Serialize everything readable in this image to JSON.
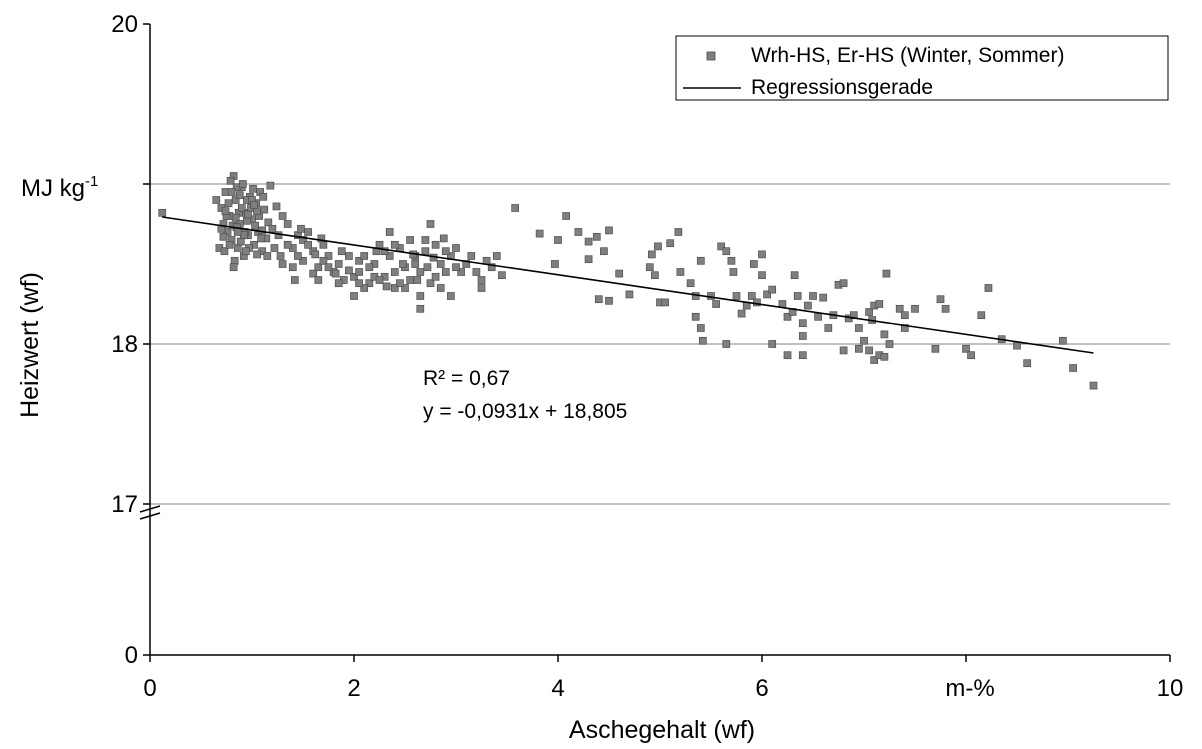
{
  "chart_data": {
    "type": "scatter",
    "xlabel": "Aschegehalt (wf)",
    "ylabel": "Heizwert (wf)",
    "x_unit_label": "m-%",
    "y_unit_label": "MJ kg",
    "y_unit_superscript": "-1",
    "xlim": [
      0,
      10
    ],
    "x_ticks": [
      "0",
      "2",
      "4",
      "6",
      "",
      "10"
    ],
    "y_ticks": [
      {
        "value": 0,
        "label": "0"
      },
      {
        "value": 17,
        "label": "17"
      },
      {
        "value": 18,
        "label": "18"
      },
      {
        "value": 19,
        "label": ""
      },
      {
        "value": 20,
        "label": "20"
      }
    ],
    "y_axis_break": true,
    "y_break_between": [
      0,
      17
    ],
    "gridlines": [
      17,
      18,
      19
    ],
    "legend": {
      "position": "top-right",
      "entries": [
        "Wrh-HS, Er-HS (Winter, Sommer)",
        "Regressionsgerade"
      ]
    },
    "annotation": {
      "r2": "R² = 0,67",
      "equation": "y = -0,0931x + 18,805"
    },
    "colors": {
      "marker_fill": "#7f7f7f",
      "marker_stroke": "#4d4d4d",
      "line": "#000000",
      "grid": "#808080"
    },
    "regression": {
      "slope": -0.0931,
      "intercept": 18.805,
      "x_range": [
        0.12,
        9.25
      ]
    },
    "series": [
      {
        "name": "Wrh-HS, Er-HS (Winter, Sommer)",
        "points": [
          [
            0.12,
            18.82
          ],
          [
            3.58,
            18.85
          ],
          [
            4.08,
            18.8
          ],
          [
            3.82,
            18.69
          ],
          [
            4.0,
            18.65
          ],
          [
            4.2,
            18.7
          ],
          [
            4.3,
            18.64
          ],
          [
            4.38,
            18.67
          ],
          [
            4.5,
            18.71
          ],
          [
            3.97,
            18.5
          ],
          [
            4.3,
            18.53
          ],
          [
            4.45,
            18.58
          ],
          [
            4.6,
            18.44
          ],
          [
            4.7,
            18.31
          ],
          [
            4.92,
            18.56
          ],
          [
            4.98,
            18.61
          ],
          [
            5.1,
            18.63
          ],
          [
            5.18,
            18.7
          ],
          [
            5.2,
            18.45
          ],
          [
            4.9,
            18.48
          ],
          [
            4.95,
            18.43
          ],
          [
            5.0,
            18.26
          ],
          [
            5.05,
            18.26
          ],
          [
            4.5,
            18.27
          ],
          [
            4.4,
            18.28
          ],
          [
            5.3,
            18.38
          ],
          [
            5.35,
            18.3
          ],
          [
            5.4,
            18.52
          ],
          [
            5.35,
            18.17
          ],
          [
            5.4,
            18.1
          ],
          [
            5.42,
            18.02
          ],
          [
            5.5,
            18.3
          ],
          [
            5.55,
            18.25
          ],
          [
            5.6,
            18.61
          ],
          [
            5.65,
            18.58
          ],
          [
            5.7,
            18.52
          ],
          [
            5.72,
            18.45
          ],
          [
            5.75,
            18.3
          ],
          [
            5.8,
            18.19
          ],
          [
            5.85,
            18.24
          ],
          [
            5.9,
            18.3
          ],
          [
            5.92,
            18.5
          ],
          [
            5.95,
            18.26
          ],
          [
            6.0,
            18.43
          ],
          [
            6.05,
            18.31
          ],
          [
            5.65,
            18.0
          ],
          [
            6.0,
            18.56
          ],
          [
            6.1,
            18.34
          ],
          [
            6.2,
            18.25
          ],
          [
            6.25,
            18.17
          ],
          [
            6.3,
            18.2
          ],
          [
            6.32,
            18.43
          ],
          [
            6.35,
            18.3
          ],
          [
            6.4,
            18.13
          ],
          [
            6.4,
            18.05
          ],
          [
            6.45,
            18.24
          ],
          [
            6.5,
            18.3
          ],
          [
            6.55,
            18.17
          ],
          [
            6.6,
            18.29
          ],
          [
            6.65,
            18.1
          ],
          [
            6.7,
            18.18
          ],
          [
            6.75,
            18.37
          ],
          [
            6.8,
            18.38
          ],
          [
            6.85,
            18.16
          ],
          [
            6.9,
            18.18
          ],
          [
            6.95,
            18.1
          ],
          [
            7.0,
            18.02
          ],
          [
            7.05,
            18.2
          ],
          [
            7.08,
            18.15
          ],
          [
            7.1,
            18.24
          ],
          [
            7.15,
            18.25
          ],
          [
            7.2,
            18.06
          ],
          [
            7.22,
            18.44
          ],
          [
            7.25,
            18.0
          ],
          [
            7.05,
            17.96
          ],
          [
            7.1,
            17.9
          ],
          [
            7.15,
            17.93
          ],
          [
            7.2,
            17.92
          ],
          [
            6.95,
            17.97
          ],
          [
            6.25,
            17.93
          ],
          [
            6.4,
            17.93
          ],
          [
            6.1,
            18.0
          ],
          [
            6.8,
            17.96
          ],
          [
            7.35,
            18.22
          ],
          [
            7.4,
            18.18
          ],
          [
            7.5,
            18.22
          ],
          [
            7.4,
            18.1
          ],
          [
            7.7,
            17.97
          ],
          [
            7.75,
            18.28
          ],
          [
            7.8,
            18.22
          ],
          [
            8.0,
            17.97
          ],
          [
            8.05,
            17.93
          ],
          [
            8.15,
            18.18
          ],
          [
            8.22,
            18.35
          ],
          [
            8.35,
            18.03
          ],
          [
            8.5,
            17.99
          ],
          [
            8.6,
            17.88
          ],
          [
            8.95,
            18.02
          ],
          [
            9.05,
            17.85
          ],
          [
            9.25,
            17.74
          ],
          [
            3.1,
            18.5
          ],
          [
            3.15,
            18.55
          ],
          [
            3.2,
            18.45
          ],
          [
            3.25,
            18.4
          ],
          [
            3.3,
            18.52
          ],
          [
            3.35,
            18.48
          ],
          [
            3.4,
            18.55
          ],
          [
            3.45,
            18.43
          ],
          [
            3.25,
            18.35
          ],
          [
            3.05,
            18.45
          ],
          [
            0.65,
            18.9
          ],
          [
            0.7,
            18.85
          ],
          [
            0.72,
            18.75
          ],
          [
            0.74,
            18.95
          ],
          [
            0.76,
            18.7
          ],
          [
            0.78,
            18.8
          ],
          [
            0.8,
            18.65
          ],
          [
            0.82,
            19.05
          ],
          [
            0.84,
            18.9
          ],
          [
            0.86,
            18.6
          ],
          [
            0.88,
            18.75
          ],
          [
            0.9,
            18.98
          ],
          [
            0.92,
            18.55
          ],
          [
            0.94,
            18.82
          ],
          [
            0.96,
            18.68
          ],
          [
            0.98,
            18.92
          ],
          [
            1.0,
            18.78
          ],
          [
            1.02,
            18.62
          ],
          [
            1.04,
            18.88
          ],
          [
            1.06,
            18.7
          ],
          [
            1.08,
            18.95
          ],
          [
            1.1,
            18.58
          ],
          [
            1.12,
            18.84
          ],
          [
            1.14,
            18.66
          ],
          [
            1.16,
            18.76
          ],
          [
            1.18,
            18.99
          ],
          [
            1.2,
            18.72
          ],
          [
            1.22,
            18.6
          ],
          [
            1.24,
            18.86
          ],
          [
            1.26,
            18.68
          ],
          [
            1.28,
            18.55
          ],
          [
            1.3,
            18.8
          ],
          [
            0.68,
            18.6
          ],
          [
            0.7,
            18.72
          ],
          [
            0.73,
            18.58
          ],
          [
            0.77,
            18.88
          ],
          [
            0.79,
            19.02
          ],
          [
            0.81,
            18.74
          ],
          [
            0.83,
            18.52
          ],
          [
            0.85,
            18.98
          ],
          [
            0.87,
            18.82
          ],
          [
            0.89,
            18.64
          ],
          [
            0.91,
            19.0
          ],
          [
            0.93,
            18.7
          ],
          [
            0.95,
            18.9
          ],
          [
            0.97,
            18.6
          ],
          [
            0.99,
            18.85
          ],
          [
            1.01,
            18.97
          ],
          [
            1.03,
            18.74
          ],
          [
            1.05,
            18.56
          ],
          [
            1.07,
            18.8
          ],
          [
            1.09,
            18.66
          ],
          [
            1.11,
            18.92
          ],
          [
            0.75,
            18.8
          ],
          [
            0.8,
            18.95
          ],
          [
            0.85,
            18.73
          ],
          [
            0.9,
            18.85
          ],
          [
            0.95,
            18.77
          ],
          [
            1.0,
            18.9
          ],
          [
            1.05,
            18.83
          ],
          [
            1.1,
            18.71
          ],
          [
            0.72,
            18.67
          ],
          [
            0.78,
            18.62
          ],
          [
            0.84,
            18.79
          ],
          [
            0.88,
            18.93
          ],
          [
            0.92,
            18.68
          ],
          [
            0.96,
            18.81
          ],
          [
            1.02,
            18.87
          ],
          [
            0.74,
            18.83
          ],
          [
            0.86,
            18.7
          ],
          [
            0.94,
            18.58
          ],
          [
            0.82,
            18.48
          ],
          [
            1.15,
            18.55
          ],
          [
            1.35,
            18.75
          ],
          [
            1.4,
            18.6
          ],
          [
            1.45,
            18.68
          ],
          [
            1.5,
            18.52
          ],
          [
            1.55,
            18.7
          ],
          [
            1.6,
            18.58
          ],
          [
            1.65,
            18.48
          ],
          [
            1.7,
            18.62
          ],
          [
            1.75,
            18.55
          ],
          [
            1.8,
            18.45
          ],
          [
            1.85,
            18.5
          ],
          [
            1.9,
            18.4
          ],
          [
            1.95,
            18.55
          ],
          [
            2.0,
            18.42
          ],
          [
            1.4,
            18.48
          ],
          [
            1.5,
            18.65
          ],
          [
            1.6,
            18.44
          ],
          [
            1.7,
            18.52
          ],
          [
            1.45,
            18.55
          ],
          [
            1.55,
            18.62
          ],
          [
            1.65,
            18.4
          ],
          [
            1.35,
            18.62
          ],
          [
            1.75,
            18.48
          ],
          [
            1.85,
            18.38
          ],
          [
            1.95,
            18.46
          ],
          [
            2.05,
            18.52
          ],
          [
            1.3,
            18.5
          ],
          [
            1.48,
            18.72
          ],
          [
            1.68,
            18.66
          ],
          [
            1.88,
            18.58
          ],
          [
            1.42,
            18.4
          ],
          [
            1.62,
            18.56
          ],
          [
            1.82,
            18.44
          ],
          [
            2.0,
            18.3
          ],
          [
            2.05,
            18.45
          ],
          [
            2.1,
            18.55
          ],
          [
            2.15,
            18.38
          ],
          [
            2.2,
            18.5
          ],
          [
            2.25,
            18.62
          ],
          [
            2.3,
            18.42
          ],
          [
            2.35,
            18.55
          ],
          [
            2.4,
            18.35
          ],
          [
            2.45,
            18.6
          ],
          [
            2.5,
            18.48
          ],
          [
            2.55,
            18.4
          ],
          [
            2.6,
            18.55
          ],
          [
            2.65,
            18.45
          ],
          [
            2.7,
            18.58
          ],
          [
            2.75,
            18.38
          ],
          [
            2.8,
            18.62
          ],
          [
            2.85,
            18.5
          ],
          [
            2.9,
            18.45
          ],
          [
            2.95,
            18.55
          ],
          [
            3.0,
            18.6
          ],
          [
            2.1,
            18.35
          ],
          [
            2.2,
            18.42
          ],
          [
            2.3,
            18.58
          ],
          [
            2.4,
            18.45
          ],
          [
            2.5,
            18.35
          ],
          [
            2.6,
            18.5
          ],
          [
            2.7,
            18.65
          ],
          [
            2.8,
            18.42
          ],
          [
            2.9,
            18.58
          ],
          [
            3.0,
            18.48
          ],
          [
            2.35,
            18.7
          ],
          [
            2.55,
            18.65
          ],
          [
            2.75,
            18.75
          ],
          [
            2.15,
            18.48
          ],
          [
            2.45,
            18.38
          ],
          [
            2.65,
            18.3
          ],
          [
            2.85,
            18.35
          ],
          [
            2.25,
            18.4
          ],
          [
            2.05,
            18.38
          ],
          [
            2.95,
            18.3
          ],
          [
            2.65,
            18.22
          ],
          [
            2.4,
            18.62
          ],
          [
            2.58,
            18.56
          ],
          [
            2.72,
            18.48
          ],
          [
            2.88,
            18.66
          ],
          [
            2.22,
            18.58
          ],
          [
            2.48,
            18.5
          ],
          [
            2.32,
            18.36
          ],
          [
            2.62,
            18.4
          ],
          [
            2.78,
            18.54
          ]
        ]
      }
    ]
  }
}
